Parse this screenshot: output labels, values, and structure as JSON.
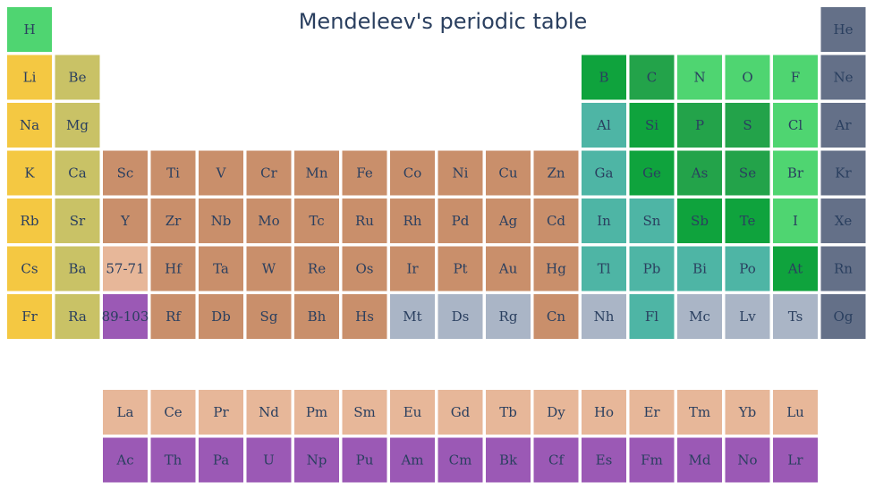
{
  "chart_data": {
    "type": "heatmap",
    "title": "Mendeleev's periodic table",
    "colors": {
      "alkali": "#f4c842",
      "alkaline_earth": "#c9c266",
      "transition": "#c98f6b",
      "post_transition": "#4eb5a5",
      "metalloid": "#23a34a",
      "nonmetal": "#0fa33d",
      "reactive_nonmetal": "#4fd571",
      "noble_gas": "#647088",
      "unknown": "#aab5c6",
      "lanthanide": "#e7b799",
      "actinide": "#9b59b5"
    },
    "cells": [
      {
        "symbol": "H",
        "row": 1,
        "col": 1,
        "category": "reactive_nonmetal"
      },
      {
        "symbol": "He",
        "row": 1,
        "col": 18,
        "category": "noble_gas"
      },
      {
        "symbol": "Li",
        "row": 2,
        "col": 1,
        "category": "alkali"
      },
      {
        "symbol": "Be",
        "row": 2,
        "col": 2,
        "category": "alkaline_earth"
      },
      {
        "symbol": "B",
        "row": 2,
        "col": 13,
        "category": "nonmetal"
      },
      {
        "symbol": "C",
        "row": 2,
        "col": 14,
        "category": "metalloid"
      },
      {
        "symbol": "N",
        "row": 2,
        "col": 15,
        "category": "reactive_nonmetal"
      },
      {
        "symbol": "O",
        "row": 2,
        "col": 16,
        "category": "reactive_nonmetal"
      },
      {
        "symbol": "F",
        "row": 2,
        "col": 17,
        "category": "reactive_nonmetal"
      },
      {
        "symbol": "Ne",
        "row": 2,
        "col": 18,
        "category": "noble_gas"
      },
      {
        "symbol": "Na",
        "row": 3,
        "col": 1,
        "category": "alkali"
      },
      {
        "symbol": "Mg",
        "row": 3,
        "col": 2,
        "category": "alkaline_earth"
      },
      {
        "symbol": "Al",
        "row": 3,
        "col": 13,
        "category": "post_transition"
      },
      {
        "symbol": "Si",
        "row": 3,
        "col": 14,
        "category": "nonmetal"
      },
      {
        "symbol": "P",
        "row": 3,
        "col": 15,
        "category": "metalloid"
      },
      {
        "symbol": "S",
        "row": 3,
        "col": 16,
        "category": "metalloid"
      },
      {
        "symbol": "Cl",
        "row": 3,
        "col": 17,
        "category": "reactive_nonmetal"
      },
      {
        "symbol": "Ar",
        "row": 3,
        "col": 18,
        "category": "noble_gas"
      },
      {
        "symbol": "K",
        "row": 4,
        "col": 1,
        "category": "alkali"
      },
      {
        "symbol": "Ca",
        "row": 4,
        "col": 2,
        "category": "alkaline_earth"
      },
      {
        "symbol": "Sc",
        "row": 4,
        "col": 3,
        "category": "transition"
      },
      {
        "symbol": "Ti",
        "row": 4,
        "col": 4,
        "category": "transition"
      },
      {
        "symbol": "V",
        "row": 4,
        "col": 5,
        "category": "transition"
      },
      {
        "symbol": "Cr",
        "row": 4,
        "col": 6,
        "category": "transition"
      },
      {
        "symbol": "Mn",
        "row": 4,
        "col": 7,
        "category": "transition"
      },
      {
        "symbol": "Fe",
        "row": 4,
        "col": 8,
        "category": "transition"
      },
      {
        "symbol": "Co",
        "row": 4,
        "col": 9,
        "category": "transition"
      },
      {
        "symbol": "Ni",
        "row": 4,
        "col": 10,
        "category": "transition"
      },
      {
        "symbol": "Cu",
        "row": 4,
        "col": 11,
        "category": "transition"
      },
      {
        "symbol": "Zn",
        "row": 4,
        "col": 12,
        "category": "transition"
      },
      {
        "symbol": "Ga",
        "row": 4,
        "col": 13,
        "category": "post_transition"
      },
      {
        "symbol": "Ge",
        "row": 4,
        "col": 14,
        "category": "nonmetal"
      },
      {
        "symbol": "As",
        "row": 4,
        "col": 15,
        "category": "metalloid"
      },
      {
        "symbol": "Se",
        "row": 4,
        "col": 16,
        "category": "metalloid"
      },
      {
        "symbol": "Br",
        "row": 4,
        "col": 17,
        "category": "reactive_nonmetal"
      },
      {
        "symbol": "Kr",
        "row": 4,
        "col": 18,
        "category": "noble_gas"
      },
      {
        "symbol": "Rb",
        "row": 5,
        "col": 1,
        "category": "alkali"
      },
      {
        "symbol": "Sr",
        "row": 5,
        "col": 2,
        "category": "alkaline_earth"
      },
      {
        "symbol": "Y",
        "row": 5,
        "col": 3,
        "category": "transition"
      },
      {
        "symbol": "Zr",
        "row": 5,
        "col": 4,
        "category": "transition"
      },
      {
        "symbol": "Nb",
        "row": 5,
        "col": 5,
        "category": "transition"
      },
      {
        "symbol": "Mo",
        "row": 5,
        "col": 6,
        "category": "transition"
      },
      {
        "symbol": "Tc",
        "row": 5,
        "col": 7,
        "category": "transition"
      },
      {
        "symbol": "Ru",
        "row": 5,
        "col": 8,
        "category": "transition"
      },
      {
        "symbol": "Rh",
        "row": 5,
        "col": 9,
        "category": "transition"
      },
      {
        "symbol": "Pd",
        "row": 5,
        "col": 10,
        "category": "transition"
      },
      {
        "symbol": "Ag",
        "row": 5,
        "col": 11,
        "category": "transition"
      },
      {
        "symbol": "Cd",
        "row": 5,
        "col": 12,
        "category": "transition"
      },
      {
        "symbol": "In",
        "row": 5,
        "col": 13,
        "category": "post_transition"
      },
      {
        "symbol": "Sn",
        "row": 5,
        "col": 14,
        "category": "post_transition"
      },
      {
        "symbol": "Sb",
        "row": 5,
        "col": 15,
        "category": "nonmetal"
      },
      {
        "symbol": "Te",
        "row": 5,
        "col": 16,
        "category": "nonmetal"
      },
      {
        "symbol": "I",
        "row": 5,
        "col": 17,
        "category": "reactive_nonmetal"
      },
      {
        "symbol": "Xe",
        "row": 5,
        "col": 18,
        "category": "noble_gas"
      },
      {
        "symbol": "Cs",
        "row": 6,
        "col": 1,
        "category": "alkali"
      },
      {
        "symbol": "Ba",
        "row": 6,
        "col": 2,
        "category": "alkaline_earth"
      },
      {
        "symbol": "57-71",
        "row": 6,
        "col": 3,
        "category": "lanthanide"
      },
      {
        "symbol": "Hf",
        "row": 6,
        "col": 4,
        "category": "transition"
      },
      {
        "symbol": "Ta",
        "row": 6,
        "col": 5,
        "category": "transition"
      },
      {
        "symbol": "W",
        "row": 6,
        "col": 6,
        "category": "transition"
      },
      {
        "symbol": "Re",
        "row": 6,
        "col": 7,
        "category": "transition"
      },
      {
        "symbol": "Os",
        "row": 6,
        "col": 8,
        "category": "transition"
      },
      {
        "symbol": "Ir",
        "row": 6,
        "col": 9,
        "category": "transition"
      },
      {
        "symbol": "Pt",
        "row": 6,
        "col": 10,
        "category": "transition"
      },
      {
        "symbol": "Au",
        "row": 6,
        "col": 11,
        "category": "transition"
      },
      {
        "symbol": "Hg",
        "row": 6,
        "col": 12,
        "category": "transition"
      },
      {
        "symbol": "Tl",
        "row": 6,
        "col": 13,
        "category": "post_transition"
      },
      {
        "symbol": "Pb",
        "row": 6,
        "col": 14,
        "category": "post_transition"
      },
      {
        "symbol": "Bi",
        "row": 6,
        "col": 15,
        "category": "post_transition"
      },
      {
        "symbol": "Po",
        "row": 6,
        "col": 16,
        "category": "post_transition"
      },
      {
        "symbol": "At",
        "row": 6,
        "col": 17,
        "category": "nonmetal"
      },
      {
        "symbol": "Rn",
        "row": 6,
        "col": 18,
        "category": "noble_gas"
      },
      {
        "symbol": "Fr",
        "row": 7,
        "col": 1,
        "category": "alkali"
      },
      {
        "symbol": "Ra",
        "row": 7,
        "col": 2,
        "category": "alkaline_earth"
      },
      {
        "symbol": "89-103",
        "row": 7,
        "col": 3,
        "category": "actinide"
      },
      {
        "symbol": "Rf",
        "row": 7,
        "col": 4,
        "category": "transition"
      },
      {
        "symbol": "Db",
        "row": 7,
        "col": 5,
        "category": "transition"
      },
      {
        "symbol": "Sg",
        "row": 7,
        "col": 6,
        "category": "transition"
      },
      {
        "symbol": "Bh",
        "row": 7,
        "col": 7,
        "category": "transition"
      },
      {
        "symbol": "Hs",
        "row": 7,
        "col": 8,
        "category": "transition"
      },
      {
        "symbol": "Mt",
        "row": 7,
        "col": 9,
        "category": "unknown"
      },
      {
        "symbol": "Ds",
        "row": 7,
        "col": 10,
        "category": "unknown"
      },
      {
        "symbol": "Rg",
        "row": 7,
        "col": 11,
        "category": "unknown"
      },
      {
        "symbol": "Cn",
        "row": 7,
        "col": 12,
        "category": "transition"
      },
      {
        "symbol": "Nh",
        "row": 7,
        "col": 13,
        "category": "unknown"
      },
      {
        "symbol": "Fl",
        "row": 7,
        "col": 14,
        "category": "post_transition"
      },
      {
        "symbol": "Mc",
        "row": 7,
        "col": 15,
        "category": "unknown"
      },
      {
        "symbol": "Lv",
        "row": 7,
        "col": 16,
        "category": "unknown"
      },
      {
        "symbol": "Ts",
        "row": 7,
        "col": 17,
        "category": "unknown"
      },
      {
        "symbol": "Og",
        "row": 7,
        "col": 18,
        "category": "noble_gas"
      },
      {
        "symbol": "La",
        "row": 9,
        "col": 3,
        "category": "lanthanide"
      },
      {
        "symbol": "Ce",
        "row": 9,
        "col": 4,
        "category": "lanthanide"
      },
      {
        "symbol": "Pr",
        "row": 9,
        "col": 5,
        "category": "lanthanide"
      },
      {
        "symbol": "Nd",
        "row": 9,
        "col": 6,
        "category": "lanthanide"
      },
      {
        "symbol": "Pm",
        "row": 9,
        "col": 7,
        "category": "lanthanide"
      },
      {
        "symbol": "Sm",
        "row": 9,
        "col": 8,
        "category": "lanthanide"
      },
      {
        "symbol": "Eu",
        "row": 9,
        "col": 9,
        "category": "lanthanide"
      },
      {
        "symbol": "Gd",
        "row": 9,
        "col": 10,
        "category": "lanthanide"
      },
      {
        "symbol": "Tb",
        "row": 9,
        "col": 11,
        "category": "lanthanide"
      },
      {
        "symbol": "Dy",
        "row": 9,
        "col": 12,
        "category": "lanthanide"
      },
      {
        "symbol": "Ho",
        "row": 9,
        "col": 13,
        "category": "lanthanide"
      },
      {
        "symbol": "Er",
        "row": 9,
        "col": 14,
        "category": "lanthanide"
      },
      {
        "symbol": "Tm",
        "row": 9,
        "col": 15,
        "category": "lanthanide"
      },
      {
        "symbol": "Yb",
        "row": 9,
        "col": 16,
        "category": "lanthanide"
      },
      {
        "symbol": "Lu",
        "row": 9,
        "col": 17,
        "category": "lanthanide"
      },
      {
        "symbol": "Ac",
        "row": 10,
        "col": 3,
        "category": "actinide"
      },
      {
        "symbol": "Th",
        "row": 10,
        "col": 4,
        "category": "actinide"
      },
      {
        "symbol": "Pa",
        "row": 10,
        "col": 5,
        "category": "actinide"
      },
      {
        "symbol": "U",
        "row": 10,
        "col": 6,
        "category": "actinide"
      },
      {
        "symbol": "Np",
        "row": 10,
        "col": 7,
        "category": "actinide"
      },
      {
        "symbol": "Pu",
        "row": 10,
        "col": 8,
        "category": "actinide"
      },
      {
        "symbol": "Am",
        "row": 10,
        "col": 9,
        "category": "actinide"
      },
      {
        "symbol": "Cm",
        "row": 10,
        "col": 10,
        "category": "actinide"
      },
      {
        "symbol": "Bk",
        "row": 10,
        "col": 11,
        "category": "actinide"
      },
      {
        "symbol": "Cf",
        "row": 10,
        "col": 12,
        "category": "actinide"
      },
      {
        "symbol": "Es",
        "row": 10,
        "col": 13,
        "category": "actinide"
      },
      {
        "symbol": "Fm",
        "row": 10,
        "col": 14,
        "category": "actinide"
      },
      {
        "symbol": "Md",
        "row": 10,
        "col": 15,
        "category": "actinide"
      },
      {
        "symbol": "No",
        "row": 10,
        "col": 16,
        "category": "actinide"
      },
      {
        "symbol": "Lr",
        "row": 10,
        "col": 17,
        "category": "actinide"
      }
    ]
  }
}
